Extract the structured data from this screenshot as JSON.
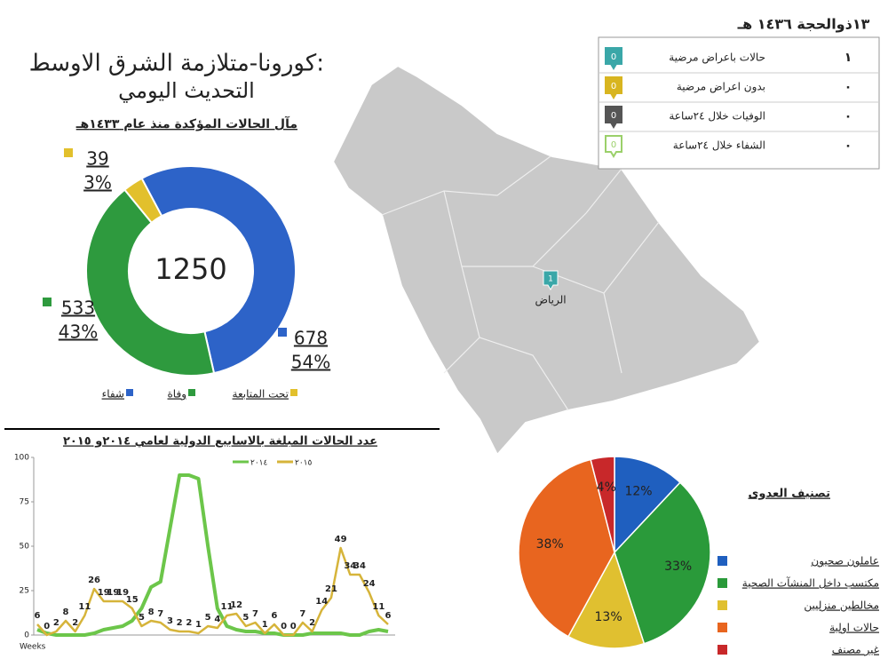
{
  "header": {
    "title": "كورونا-متلازمة الشرق الاوسط:",
    "subtitle": "التحديث اليومي"
  },
  "daily_table": {
    "date": "١٣ذوالحجة ١٤٣٦ هـ",
    "rows": [
      {
        "label": "حالات باعراض مرضية",
        "icon": "0",
        "count": "١",
        "color": "#3aa7a8"
      },
      {
        "label": "بدون اعراض مرضية",
        "icon": "0",
        "count": "٠",
        "color": "#d8b520"
      },
      {
        "label": "الوفيات خلال ٢٤ساعة",
        "icon": "0",
        "count": "٠",
        "color": "#555555"
      },
      {
        "label": "الشفاء خلال ٢٤ساعة",
        "icon": "0",
        "count": "٠",
        "color": "#9bd06a"
      }
    ]
  },
  "map": {
    "marker": "1",
    "city": "الرياض"
  },
  "chart_data": [
    {
      "type": "donut",
      "title": "مآل الحالات المؤكدة منذ عام ١٤٣٣هـ",
      "total": 1250,
      "categories": [
        "شفاء",
        "وفاة",
        "تحت المتابعة"
      ],
      "values": [
        678,
        533,
        39
      ],
      "shares": [
        54,
        43,
        3
      ],
      "share_labels": [
        "54%",
        "43%",
        "3%"
      ],
      "colors": [
        "#2d63c8",
        "#2e9a3e",
        "#e2c02c"
      ]
    },
    {
      "type": "line",
      "title": "عدد الحالات المبلغة بالاسابيع الدولية لعامي ٢٠١٤و ٢٠١٥",
      "xlabel": "Weeks",
      "ylim": [
        0,
        100
      ],
      "yticks": [
        0,
        25,
        50,
        75,
        100
      ],
      "grid": false,
      "series": [
        {
          "name": "٢٠١٤",
          "color": "#6cc64a",
          "values": [
            3,
            1,
            0,
            0,
            0,
            0,
            1,
            3,
            4,
            5,
            8,
            15,
            27,
            30,
            60,
            90,
            90,
            88,
            50,
            15,
            5,
            3,
            2,
            2,
            1,
            1,
            0,
            0,
            0,
            1,
            1,
            1,
            1,
            0,
            0,
            2,
            3,
            2
          ]
        },
        {
          "name": "٢٠١٥",
          "color": "#d6b43a",
          "labels": true,
          "values": [
            6,
            0,
            2,
            8,
            2,
            11,
            26,
            19,
            19,
            19,
            15,
            5,
            8,
            7,
            3,
            2,
            2,
            1,
            5,
            4,
            11,
            12,
            5,
            7,
            1,
            6,
            0,
            0,
            7,
            2,
            14,
            21,
            49,
            34,
            34,
            24,
            11,
            6
          ]
        }
      ]
    },
    {
      "type": "pie",
      "title": "تصنيف العدوى",
      "categories": [
        "عاملون صحيون",
        "مكتسب داخل المنشآت الصحية",
        "مخالطين منزليين",
        "حالات اولية",
        "غير مصنف"
      ],
      "values": [
        12,
        33,
        13,
        38,
        4
      ],
      "value_labels": [
        "12%",
        "33%",
        "13%",
        "38%",
        "4%"
      ],
      "colors": [
        "#1f5fbf",
        "#2a9a3a",
        "#e0c030",
        "#e8651f",
        "#c8282a"
      ]
    }
  ]
}
